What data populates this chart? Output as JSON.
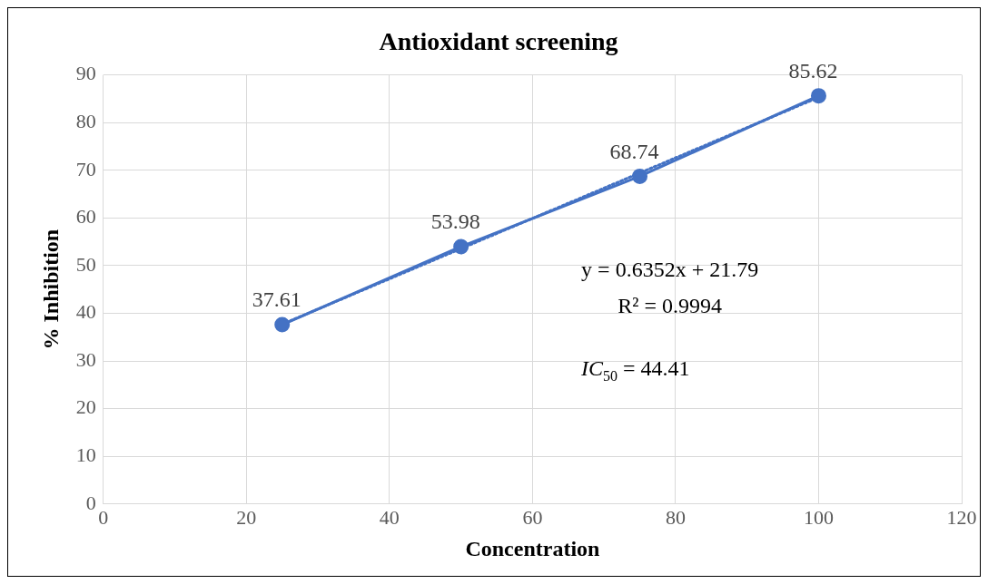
{
  "chart_data": {
    "type": "line",
    "title": "Antioxidant screening",
    "xlabel": "Concentration",
    "ylabel": "% Inhibition",
    "x": [
      25,
      50,
      75,
      100
    ],
    "series": [
      {
        "type": "line",
        "color": "#4472c4",
        "values": [
          37.61,
          53.98,
          68.74,
          85.62
        ],
        "value_labels": [
          "37.61",
          "53.98",
          "68.74",
          "85.62"
        ],
        "marker": "circle",
        "line_style": "solid"
      },
      {
        "type": "line",
        "color": "#4472c4",
        "x": [
          25,
          100
        ],
        "values": [
          37.7,
          85.3
        ],
        "marker": "none",
        "line_style": "dotted"
      }
    ],
    "xlim": [
      0,
      120
    ],
    "xticks": [
      0,
      20,
      40,
      60,
      80,
      100,
      120
    ],
    "ylim": [
      0,
      90
    ],
    "yticks": [
      0,
      10,
      20,
      30,
      40,
      50,
      60,
      70,
      80,
      90
    ],
    "grid": true,
    "legend": false,
    "annotations": [
      "y = 0.6352x + 21.79",
      "R² = 0.9994",
      "IC$_{50}$ = 44.41"
    ]
  }
}
